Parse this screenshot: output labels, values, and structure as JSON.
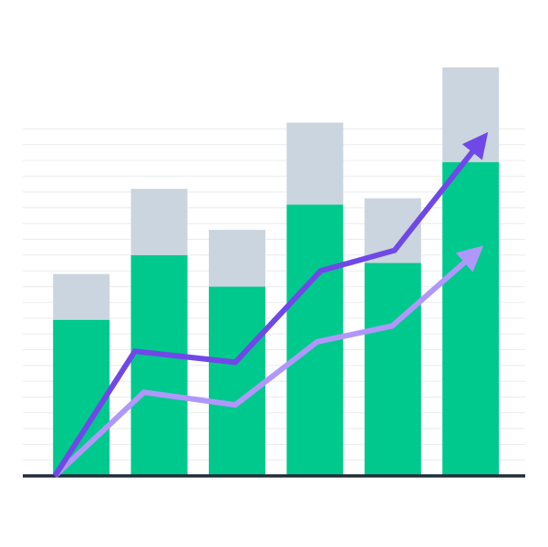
{
  "chart_data": [
    {
      "type": "bar",
      "stacked": true,
      "categories": [
        null,
        null,
        null,
        null,
        null,
        null
      ],
      "series": [
        {
          "color": "#00c98d",
          "values": [
            9.9,
            14,
            12,
            17.2,
            13.5,
            19.9
          ]
        },
        {
          "color": "#cbd5df",
          "values": [
            2.9,
            4.2,
            3.6,
            5.2,
            4.1,
            6
          ]
        }
      ],
      "ylim": [
        0,
        26
      ],
      "yticks": [
        1,
        2,
        3,
        4,
        5,
        6,
        7,
        8,
        9,
        10,
        11,
        12,
        13,
        14,
        15,
        16,
        17,
        18,
        19,
        20,
        21,
        22
      ],
      "grid": true
    },
    {
      "type": "line",
      "arrow": true,
      "xlim": [
        0,
        100
      ],
      "ylim": [
        0,
        26
      ],
      "series": [
        {
          "color": "#b197fc",
          "x": [
            6.4,
            24.1,
            42.3,
            58.6,
            73.5,
            91.7
          ],
          "values": [
            0,
            5.3,
            4.5,
            8.5,
            9.5,
            14.6
          ]
        },
        {
          "color": "#7048e8",
          "x": [
            6.4,
            22.3,
            42.3,
            59.3,
            74,
            92.6
          ],
          "values": [
            0,
            7.9,
            7.2,
            13,
            14.3,
            21.8
          ]
        }
      ]
    }
  ]
}
